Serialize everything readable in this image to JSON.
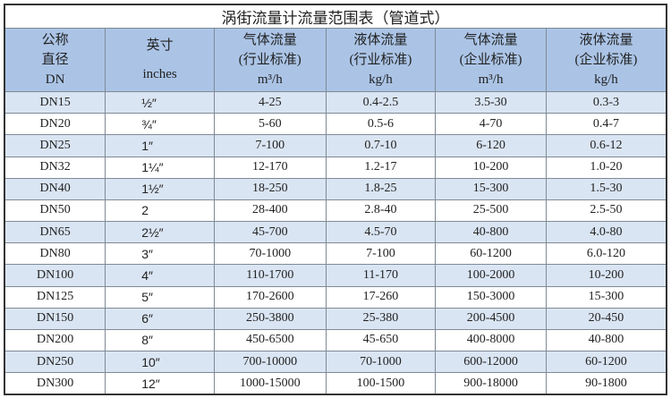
{
  "title": "涡街流量计流量范围表（管道式）",
  "headers": [
    [
      "公称",
      "直径",
      "DN"
    ],
    [
      "英寸",
      "inches"
    ],
    [
      "气体流量",
      "(行业标准)",
      "m³/h"
    ],
    [
      "液体流量",
      "(行业标准)",
      "kg/h"
    ],
    [
      "气体流量",
      "(企业标准)",
      "m³/h"
    ],
    [
      "液体流量",
      "(企业标准)",
      "kg/h"
    ]
  ],
  "rows": [
    [
      "DN15",
      "½″",
      "4-25",
      "0.4-2.5",
      "3.5-30",
      "0.3-3"
    ],
    [
      "DN20",
      "¾″",
      "5-60",
      "0.5-6",
      "4-70",
      "0.4-7"
    ],
    [
      "DN25",
      "1″",
      "7-100",
      "0.7-10",
      "6-120",
      "0.6-12"
    ],
    [
      "DN32",
      "1¼″",
      "12-170",
      "1.2-17",
      "10-200",
      "1.0-20"
    ],
    [
      "DN40",
      "1½″",
      "18-250",
      "1.8-25",
      "15-300",
      "1.5-30"
    ],
    [
      "DN50",
      "2",
      "28-400",
      "2.8-40",
      "25-500",
      "2.5-50"
    ],
    [
      "DN65",
      "2½″",
      "45-700",
      "4.5-70",
      "40-800",
      "4.0-80"
    ],
    [
      "DN80",
      "3″",
      "70-1000",
      "7-100",
      "60-1200",
      "6.0-120"
    ],
    [
      "DN100",
      "4″",
      "110-1700",
      "11-170",
      "100-2000",
      "10-200"
    ],
    [
      "DN125",
      "5″",
      "170-2600",
      "17-260",
      "150-3000",
      "15-300"
    ],
    [
      "DN150",
      "6″",
      "250-3800",
      "25-380",
      "200-4500",
      "20-450"
    ],
    [
      "DN200",
      "8″",
      "450-6500",
      "45-650",
      "400-8000",
      "40-800"
    ],
    [
      "DN250",
      "10″",
      "700-10000",
      "70-1000",
      "600-12000",
      "60-1200"
    ],
    [
      "DN300",
      "12″",
      "1000-15000",
      "100-1500",
      "900-18000",
      "90-1800"
    ]
  ],
  "colors": {
    "header_bg": "#abc4e6",
    "stripe_bg": "#dae5f3"
  }
}
